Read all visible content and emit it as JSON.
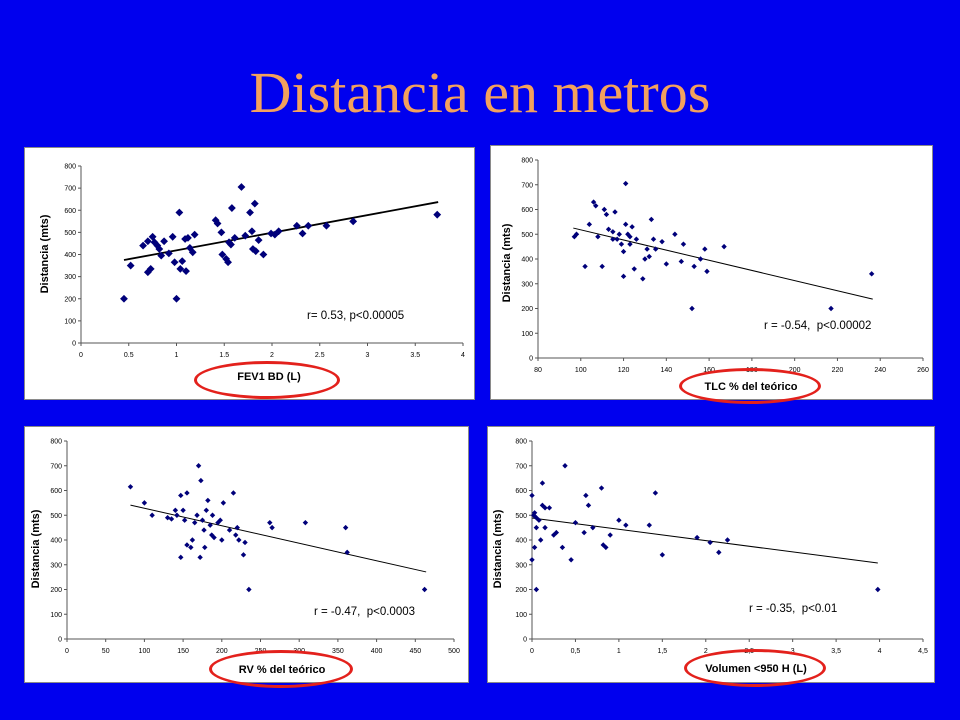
{
  "slide": {
    "title": "Distancia en metros"
  },
  "colors": {
    "background": "#0000ee",
    "title": "#f3a15d",
    "panel": "#ffffff",
    "marker": "#00007a",
    "trendline": "#000000",
    "axis": "#555555",
    "highlight": "#e3211c"
  },
  "chart_data": [
    {
      "type": "scatter",
      "xlabel": "FEV1 BD (L)",
      "ylabel": "Distancia (mts)",
      "annotation": "r= 0.53, p<0.00005",
      "xlim": [
        0,
        4
      ],
      "ylim": [
        0,
        800
      ],
      "xticks": [
        "0",
        "0.5",
        "1",
        "1.5",
        "2",
        "2.5",
        "3",
        "3.5",
        "4"
      ],
      "yticks": [
        "0",
        "100",
        "200",
        "300",
        "400",
        "500",
        "600",
        "700",
        "800"
      ],
      "grid": false,
      "points": [
        [
          0.45,
          200
        ],
        [
          0.52,
          350
        ],
        [
          0.65,
          440
        ],
        [
          0.7,
          320
        ],
        [
          0.73,
          335
        ],
        [
          0.7,
          460
        ],
        [
          0.75,
          480
        ],
        [
          0.77,
          455
        ],
        [
          0.8,
          440
        ],
        [
          0.82,
          425
        ],
        [
          0.84,
          395
        ],
        [
          0.87,
          460
        ],
        [
          0.92,
          405
        ],
        [
          0.96,
          480
        ],
        [
          0.98,
          365
        ],
        [
          1.0,
          200
        ],
        [
          1.03,
          590
        ],
        [
          1.04,
          335
        ],
        [
          1.06,
          370
        ],
        [
          1.1,
          325
        ],
        [
          1.09,
          470
        ],
        [
          1.12,
          475
        ],
        [
          1.14,
          430
        ],
        [
          1.17,
          410
        ],
        [
          1.19,
          490
        ],
        [
          1.41,
          555
        ],
        [
          1.43,
          540
        ],
        [
          1.47,
          500
        ],
        [
          1.48,
          400
        ],
        [
          1.52,
          380
        ],
        [
          1.54,
          365
        ],
        [
          1.55,
          455
        ],
        [
          1.57,
          445
        ],
        [
          1.58,
          610
        ],
        [
          1.61,
          475
        ],
        [
          1.68,
          705
        ],
        [
          1.72,
          485
        ],
        [
          1.77,
          590
        ],
        [
          1.79,
          505
        ],
        [
          1.82,
          630
        ],
        [
          1.8,
          425
        ],
        [
          1.83,
          415
        ],
        [
          1.86,
          465
        ],
        [
          1.91,
          400
        ],
        [
          1.99,
          495
        ],
        [
          2.03,
          490
        ],
        [
          2.07,
          505
        ],
        [
          2.26,
          530
        ],
        [
          2.32,
          495
        ],
        [
          2.38,
          530
        ],
        [
          2.57,
          530
        ],
        [
          2.85,
          550
        ],
        [
          3.73,
          580
        ]
      ],
      "trendline": {
        "from": [
          0.45,
          375
        ],
        "to": [
          3.74,
          637
        ]
      }
    },
    {
      "type": "scatter",
      "xlabel": "TLC % del teórico",
      "ylabel": "Distancia (mts)",
      "annotation": "r = -0.54,  p<0.00002",
      "xlim": [
        80,
        260
      ],
      "ylim": [
        0,
        800
      ],
      "xticks": [
        "80",
        "100",
        "120",
        "140",
        "160",
        "180",
        "200",
        "220",
        "240",
        "260"
      ],
      "yticks": [
        "0",
        "100",
        "200",
        "300",
        "400",
        "500",
        "600",
        "700",
        "800"
      ],
      "grid": false,
      "points": [
        [
          97,
          490
        ],
        [
          98,
          500
        ],
        [
          102,
          370
        ],
        [
          104,
          540
        ],
        [
          106,
          630
        ],
        [
          107,
          615
        ],
        [
          108,
          490
        ],
        [
          110,
          370
        ],
        [
          111,
          600
        ],
        [
          112,
          580
        ],
        [
          113,
          520
        ],
        [
          115,
          480
        ],
        [
          115,
          510
        ],
        [
          116,
          590
        ],
        [
          117,
          480
        ],
        [
          118,
          500
        ],
        [
          119,
          460
        ],
        [
          120,
          430
        ],
        [
          120,
          330
        ],
        [
          121,
          705
        ],
        [
          121,
          540
        ],
        [
          122,
          500
        ],
        [
          123,
          490
        ],
        [
          123,
          460
        ],
        [
          124,
          530
        ],
        [
          125,
          360
        ],
        [
          126,
          480
        ],
        [
          129,
          320
        ],
        [
          130,
          400
        ],
        [
          131,
          440
        ],
        [
          132,
          410
        ],
        [
          133,
          560
        ],
        [
          134,
          480
        ],
        [
          135,
          440
        ],
        [
          138,
          470
        ],
        [
          140,
          380
        ],
        [
          144,
          500
        ],
        [
          147,
          390
        ],
        [
          148,
          460
        ],
        [
          152,
          200
        ],
        [
          153,
          370
        ],
        [
          156,
          400
        ],
        [
          158,
          440
        ],
        [
          159,
          350
        ],
        [
          167,
          450
        ],
        [
          217,
          200
        ],
        [
          236,
          340
        ]
      ],
      "trendline": {
        "from": [
          96.5,
          525
        ],
        "to": [
          236.5,
          238
        ]
      }
    },
    {
      "type": "scatter",
      "xlabel": "RV % del teórico",
      "ylabel": "Distancia (mts)",
      "annotation": "r = -0.47,  p<0.0003",
      "xlim": [
        0,
        500
      ],
      "ylim": [
        0,
        800
      ],
      "xticks": [
        "0",
        "50",
        "100",
        "150",
        "200",
        "250",
        "300",
        "350",
        "400",
        "450",
        "500"
      ],
      "yticks": [
        "0",
        "100",
        "200",
        "300",
        "400",
        "500",
        "600",
        "700",
        "800"
      ],
      "grid": false,
      "points": [
        [
          82,
          615
        ],
        [
          100,
          550
        ],
        [
          110,
          500
        ],
        [
          130,
          490
        ],
        [
          135,
          485
        ],
        [
          140,
          520
        ],
        [
          142,
          500
        ],
        [
          147,
          580
        ],
        [
          147,
          330
        ],
        [
          150,
          520
        ],
        [
          152,
          480
        ],
        [
          155,
          590
        ],
        [
          155,
          380
        ],
        [
          160,
          370
        ],
        [
          162,
          400
        ],
        [
          165,
          470
        ],
        [
          168,
          500
        ],
        [
          170,
          700
        ],
        [
          172,
          330
        ],
        [
          173,
          640
        ],
        [
          175,
          480
        ],
        [
          177,
          440
        ],
        [
          178,
          370
        ],
        [
          180,
          520
        ],
        [
          182,
          560
        ],
        [
          185,
          460
        ],
        [
          187,
          420
        ],
        [
          188,
          500
        ],
        [
          190,
          410
        ],
        [
          195,
          470
        ],
        [
          198,
          480
        ],
        [
          200,
          400
        ],
        [
          202,
          550
        ],
        [
          210,
          440
        ],
        [
          215,
          590
        ],
        [
          218,
          420
        ],
        [
          220,
          450
        ],
        [
          222,
          400
        ],
        [
          228,
          340
        ],
        [
          230,
          390
        ],
        [
          235,
          200
        ],
        [
          262,
          470
        ],
        [
          265,
          450
        ],
        [
          308,
          470
        ],
        [
          360,
          450
        ],
        [
          362,
          350
        ],
        [
          462,
          200
        ]
      ],
      "trendline": {
        "from": [
          82,
          541
        ],
        "to": [
          464,
          271
        ]
      }
    },
    {
      "type": "scatter",
      "xlabel": "Volumen <950 H (L)",
      "ylabel": "Distancia (mts)",
      "annotation": "r = -0.35,  p<0.01",
      "xlim": [
        0,
        4.5
      ],
      "ylim": [
        0,
        800
      ],
      "xticks": [
        "0",
        "0,5",
        "1",
        "1,5",
        "2",
        "2,5",
        "3",
        "3,5",
        "4",
        "4,5"
      ],
      "yticks": [
        "0",
        "100",
        "200",
        "300",
        "400",
        "500",
        "600",
        "700",
        "800"
      ],
      "grid": false,
      "points": [
        [
          0.0,
          580
        ],
        [
          0.02,
          500
        ],
        [
          0.03,
          510
        ],
        [
          0.05,
          490
        ],
        [
          0.05,
          450
        ],
        [
          0.03,
          370
        ],
        [
          0.0,
          320
        ],
        [
          0.05,
          200
        ],
        [
          0.08,
          480
        ],
        [
          0.1,
          400
        ],
        [
          0.12,
          630
        ],
        [
          0.12,
          540
        ],
        [
          0.15,
          530
        ],
        [
          0.15,
          450
        ],
        [
          0.2,
          530
        ],
        [
          0.25,
          420
        ],
        [
          0.28,
          430
        ],
        [
          0.35,
          370
        ],
        [
          0.38,
          700
        ],
        [
          0.45,
          320
        ],
        [
          0.5,
          470
        ],
        [
          0.6,
          430
        ],
        [
          0.62,
          580
        ],
        [
          0.65,
          540
        ],
        [
          0.7,
          450
        ],
        [
          0.8,
          610
        ],
        [
          0.82,
          380
        ],
        [
          0.85,
          370
        ],
        [
          0.9,
          420
        ],
        [
          1.0,
          480
        ],
        [
          1.08,
          460
        ],
        [
          1.35,
          460
        ],
        [
          1.42,
          590
        ],
        [
          1.5,
          340
        ],
        [
          1.9,
          410
        ],
        [
          2.05,
          390
        ],
        [
          2.15,
          350
        ],
        [
          2.25,
          400
        ],
        [
          3.98,
          200
        ]
      ],
      "trendline": {
        "from": [
          0,
          489
        ],
        "to": [
          3.98,
          307
        ]
      }
    }
  ]
}
